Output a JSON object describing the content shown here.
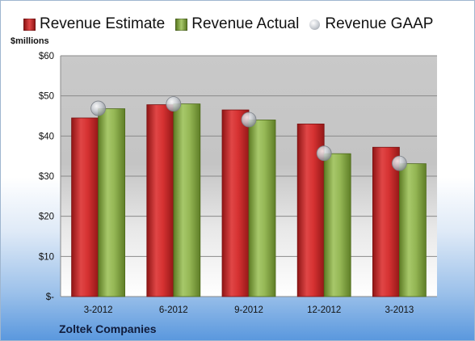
{
  "chart_data": {
    "type": "bar",
    "categories": [
      "3-2012",
      "6-2012",
      "9-2012",
      "12-2012",
      "3-2013"
    ],
    "series": [
      {
        "name": "Revenue Estimate",
        "values": [
          44.5,
          47.8,
          46.5,
          43.0,
          37.2
        ],
        "color": "#cc2727"
      },
      {
        "name": "Revenue Actual",
        "values": [
          46.8,
          48.0,
          44.0,
          35.6,
          33.1
        ],
        "color": "#8fb04a"
      },
      {
        "name": "Revenue GAAP",
        "values": [
          46.9,
          48.0,
          44.1,
          35.7,
          33.2
        ],
        "color": "#c8ccd2",
        "marker": "circle"
      }
    ],
    "ylabel": "$millions",
    "ylim": [
      0,
      60
    ],
    "yticks": [
      0,
      10,
      20,
      30,
      40,
      50,
      60
    ],
    "ytick_labels": [
      "$-",
      "$10",
      "$20",
      "$30",
      "$40",
      "$50",
      "$60"
    ],
    "grid": true,
    "legend_position": "top"
  },
  "company": "Zoltek Companies"
}
